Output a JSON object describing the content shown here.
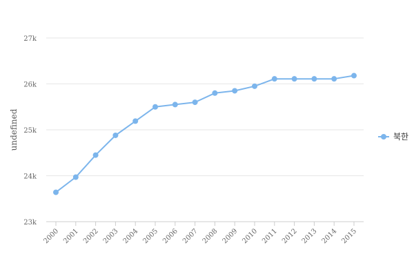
{
  "chart_data": {
    "type": "line",
    "x": [
      "2000",
      "2001",
      "2002",
      "2003",
      "2004",
      "2005",
      "2006",
      "2007",
      "2008",
      "2009",
      "2010",
      "2011",
      "2012",
      "2013",
      "2014",
      "2015"
    ],
    "series": [
      {
        "name": "북한",
        "values": [
          23640,
          23970,
          24450,
          24880,
          25190,
          25500,
          25550,
          25600,
          25800,
          25850,
          25950,
          26110,
          26110,
          26110,
          26110,
          26180
        ]
      }
    ],
    "ylabel": "undefined",
    "xlabel": "",
    "ylim": [
      23000,
      27000
    ],
    "yticks": [
      23000,
      24000,
      25000,
      26000,
      27000
    ],
    "ytick_labels": [
      "23k",
      "24k",
      "25k",
      "26k",
      "27k"
    ],
    "grid": true,
    "legend": "right",
    "color": "#7cb5ec"
  }
}
